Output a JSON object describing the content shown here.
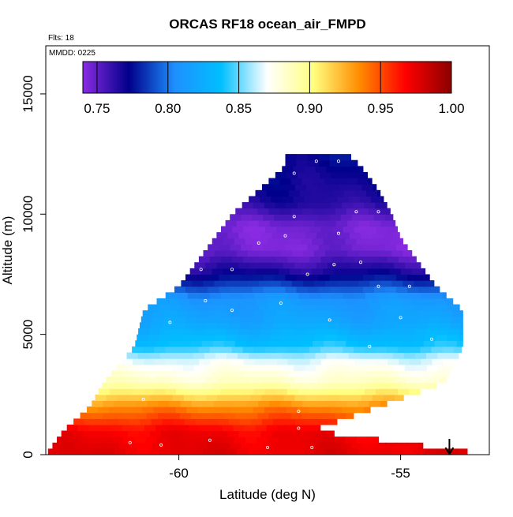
{
  "chart_data": {
    "type": "heatmap",
    "title": "ORCAS RF18 ocean_air_FMPD",
    "annotations": [
      "Flts: 18",
      "MMDD: 0225"
    ],
    "xlabel": "Latitude (deg N)",
    "ylabel": "Altitude (m)",
    "x_ticks": [
      -60,
      -55
    ],
    "y_ticks": [
      0,
      5000,
      10000,
      15000
    ],
    "xlim": [
      -63.0,
      -53.0
    ],
    "ylim": [
      0,
      17000
    ],
    "colorbar": {
      "ticks": [
        "0.75",
        "0.80",
        "0.85",
        "0.90",
        "0.95",
        "1.00"
      ],
      "range": [
        0.74,
        1.0
      ],
      "stops": [
        "#8a2be2",
        "#00008b",
        "#1e90ff",
        "#00bfff",
        "#ffffff",
        "#ffff80",
        "#ff8c00",
        "#ff0000",
        "#8b0000"
      ]
    },
    "profile": [
      {
        "alt": 0,
        "value": 0.975
      },
      {
        "alt": 1000,
        "value": 0.97
      },
      {
        "alt": 2000,
        "value": 0.935
      },
      {
        "alt": 3000,
        "value": 0.885
      },
      {
        "alt": 4000,
        "value": 0.865
      },
      {
        "alt": 4500,
        "value": 0.84
      },
      {
        "alt": 5500,
        "value": 0.82
      },
      {
        "alt": 6500,
        "value": 0.81
      },
      {
        "alt": 7000,
        "value": 0.79
      },
      {
        "alt": 7500,
        "value": 0.77
      },
      {
        "alt": 8500,
        "value": 0.745
      },
      {
        "alt": 9500,
        "value": 0.745
      },
      {
        "alt": 10500,
        "value": 0.765
      },
      {
        "alt": 11500,
        "value": 0.77
      },
      {
        "alt": 12500,
        "value": 0.775
      }
    ],
    "envelope": [
      {
        "alt": 0,
        "lat_min": -63.0,
        "lat_max": -53.0
      },
      {
        "alt": 1000,
        "lat_min": -62.6,
        "lat_max": -57.0
      },
      {
        "alt": 2000,
        "lat_min": -62.0,
        "lat_max": -55.5
      },
      {
        "alt": 3000,
        "lat_min": -61.7,
        "lat_max": -54.0
      },
      {
        "alt": 4500,
        "lat_min": -61.0,
        "lat_max": -53.6
      },
      {
        "alt": 6000,
        "lat_min": -60.8,
        "lat_max": -53.6
      },
      {
        "alt": 7000,
        "lat_min": -60.0,
        "lat_max": -54.2
      },
      {
        "alt": 8000,
        "lat_min": -59.6,
        "lat_max": -54.6
      },
      {
        "alt": 9000,
        "lat_min": -59.2,
        "lat_max": -55.0
      },
      {
        "alt": 10000,
        "lat_min": -58.8,
        "lat_max": -55.2
      },
      {
        "alt": 11000,
        "lat_min": -58.2,
        "lat_max": -55.5
      },
      {
        "alt": 12000,
        "lat_min": -57.6,
        "lat_max": -55.9
      },
      {
        "alt": 12500,
        "lat_min": -57.6,
        "lat_max": -56.2
      }
    ],
    "sample_points": [
      {
        "lat": -61.1,
        "alt": 500
      },
      {
        "lat": -60.4,
        "alt": 400
      },
      {
        "lat": -59.3,
        "alt": 600
      },
      {
        "lat": -58.0,
        "alt": 300
      },
      {
        "lat": -57.3,
        "alt": 1100
      },
      {
        "lat": -57.0,
        "alt": 300
      },
      {
        "lat": -57.3,
        "alt": 1800
      },
      {
        "lat": -60.8,
        "alt": 2300
      },
      {
        "lat": -60.6,
        "alt": 3200
      },
      {
        "lat": -59.5,
        "alt": 3800
      },
      {
        "lat": -60.2,
        "alt": 5500
      },
      {
        "lat": -59.4,
        "alt": 6400
      },
      {
        "lat": -58.8,
        "alt": 6000
      },
      {
        "lat": -57.7,
        "alt": 6300
      },
      {
        "lat": -56.6,
        "alt": 5600
      },
      {
        "lat": -55.7,
        "alt": 4500
      },
      {
        "lat": -55.0,
        "alt": 5700
      },
      {
        "lat": -54.3,
        "alt": 4800
      },
      {
        "lat": -55.5,
        "alt": 7000
      },
      {
        "lat": -54.8,
        "alt": 7000
      },
      {
        "lat": -57.1,
        "alt": 7500
      },
      {
        "lat": -56.5,
        "alt": 7900
      },
      {
        "lat": -55.9,
        "alt": 8000
      },
      {
        "lat": -59.5,
        "alt": 7700
      },
      {
        "lat": -58.8,
        "alt": 7700
      },
      {
        "lat": -58.2,
        "alt": 8800
      },
      {
        "lat": -57.6,
        "alt": 9100
      },
      {
        "lat": -56.4,
        "alt": 9200
      },
      {
        "lat": -56.0,
        "alt": 10100
      },
      {
        "lat": -55.5,
        "alt": 10100
      },
      {
        "lat": -57.4,
        "alt": 9900
      },
      {
        "lat": -56.9,
        "alt": 12200
      },
      {
        "lat": -56.4,
        "alt": 12200
      },
      {
        "lat": -55.9,
        "alt": 12100
      },
      {
        "lat": -57.4,
        "alt": 11700
      },
      {
        "lat": -55.6,
        "alt": 11600
      },
      {
        "lat": -54.7,
        "alt": 9100
      },
      {
        "lat": -54.4,
        "alt": 8200
      }
    ],
    "arrow_marker": {
      "lat": -53.9,
      "direction": "down"
    }
  }
}
